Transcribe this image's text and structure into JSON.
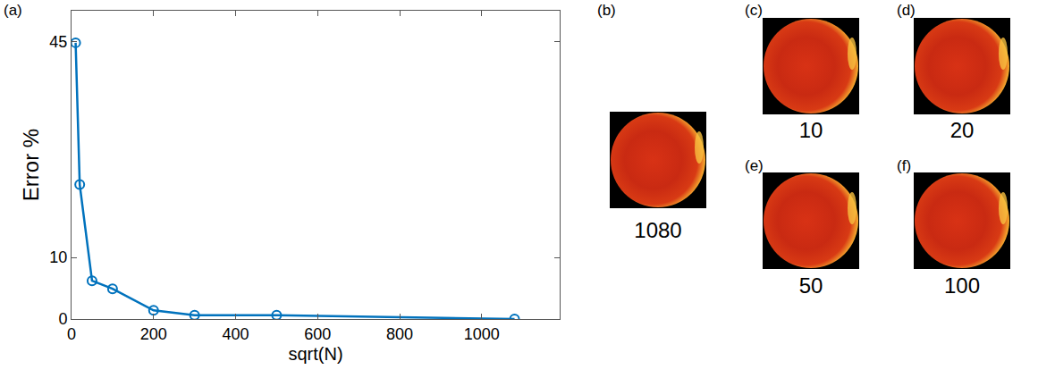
{
  "chart_data": {
    "type": "line",
    "panel": "(a)",
    "x_label": "sqrt(N)",
    "y_label": "Error %",
    "x": [
      10,
      20,
      50,
      100,
      200,
      300,
      500,
      1080
    ],
    "values": [
      44.8,
      21.8,
      6.2,
      4.9,
      1.4,
      0.6,
      0.6,
      0
    ],
    "color": "#0072bd",
    "marker": "open_circle",
    "xlim": [
      0,
      1190
    ],
    "xticks": [
      0,
      200,
      400,
      600,
      800,
      1000
    ],
    "ylim": [
      0,
      50
    ],
    "yticks": [
      0,
      10,
      45
    ],
    "grid": false
  },
  "panels": [
    {
      "label": "(b)",
      "caption": "1080"
    },
    {
      "label": "(c)",
      "caption": "10"
    },
    {
      "label": "(d)",
      "caption": "20"
    },
    {
      "label": "(e)",
      "caption": "50"
    },
    {
      "label": "(f)",
      "caption": "100"
    }
  ]
}
